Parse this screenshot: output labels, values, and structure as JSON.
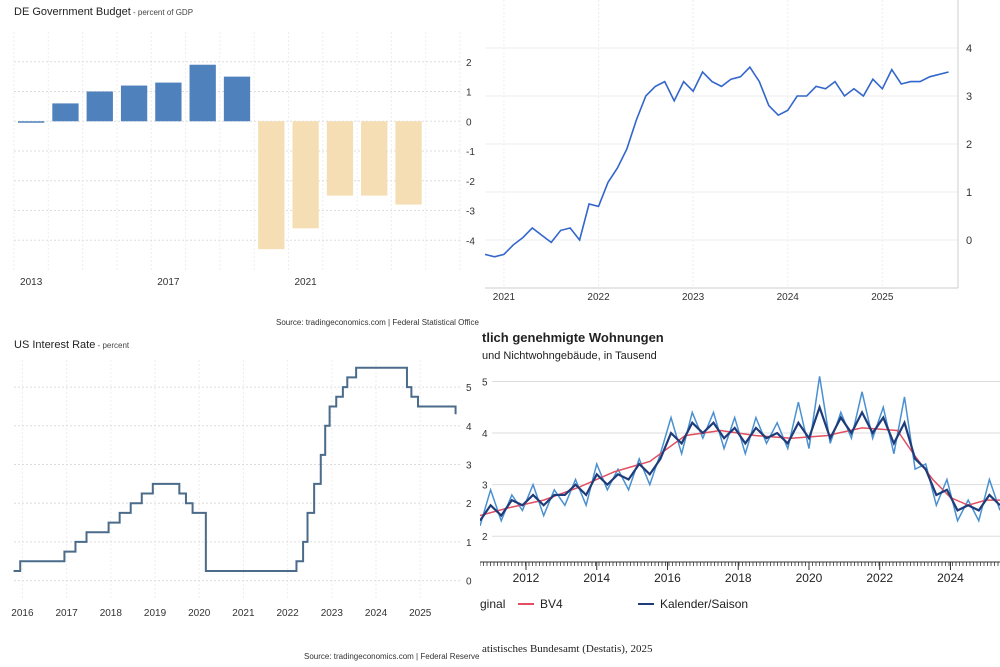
{
  "chart_data": [
    {
      "type": "bar",
      "title": "DE Government Budget",
      "subtitle": "percent of GDP",
      "source": "Source: tradingeconomics.com | Federal Statistical Office",
      "categories": [
        "2013",
        "2014",
        "2015",
        "2016",
        "2017",
        "2018",
        "2019",
        "2020",
        "2021",
        "2022",
        "2023",
        "2024",
        "2025"
      ],
      "values": [
        0.0,
        0.6,
        1.0,
        1.2,
        1.3,
        1.9,
        1.5,
        -4.3,
        -3.6,
        -2.5,
        -2.5,
        -2.8,
        null
      ],
      "x_tick_labels": [
        "2013",
        "2017",
        "2021"
      ],
      "y_ticks": [
        2,
        1,
        0,
        -1,
        -2,
        -3,
        -4
      ],
      "ylim": [
        -5,
        3
      ],
      "colors": {
        "positive": "#4f81bd",
        "negative": "#f5deb3"
      },
      "grid": true
    },
    {
      "type": "line",
      "title": "",
      "x_tick_labels": [
        "2021",
        "2022",
        "2023",
        "2024",
        "2025"
      ],
      "y_ticks": [
        4,
        3,
        2,
        1,
        0
      ],
      "ylim": [
        -1,
        5
      ],
      "series": [
        {
          "x": [
            2020.8,
            2020.9,
            2021.0,
            2021.1,
            2021.2,
            2021.3,
            2021.4,
            2021.5,
            2021.6,
            2021.7,
            2021.8,
            2021.9,
            2022.0,
            2022.1,
            2022.2,
            2022.3,
            2022.4,
            2022.5,
            2022.6,
            2022.7,
            2022.8,
            2022.9,
            2023.0,
            2023.1,
            2023.2,
            2023.3,
            2023.4,
            2023.5,
            2023.6,
            2023.7,
            2023.8,
            2023.9,
            2024.0,
            2024.1,
            2024.2,
            2024.3,
            2024.4,
            2024.5,
            2024.6,
            2024.7,
            2024.8,
            2024.9,
            2025.0,
            2025.1,
            2025.2,
            2025.3,
            2025.4,
            2025.5,
            2025.7
          ],
          "values": [
            -0.3,
            -0.35,
            -0.3,
            -0.1,
            0.05,
            0.25,
            0.1,
            -0.05,
            0.2,
            0.25,
            0.0,
            0.75,
            0.7,
            1.2,
            1.5,
            1.9,
            2.5,
            3.0,
            3.2,
            3.3,
            2.9,
            3.3,
            3.1,
            3.5,
            3.3,
            3.2,
            3.35,
            3.4,
            3.6,
            3.3,
            2.8,
            2.6,
            2.7,
            3.0,
            3.0,
            3.2,
            3.15,
            3.3,
            3.0,
            3.15,
            3.0,
            3.35,
            3.15,
            3.55,
            3.25,
            3.3,
            3.3,
            3.4,
            3.5
          ]
        }
      ],
      "colors": {
        "line": "#3366cc"
      },
      "grid": true
    },
    {
      "type": "line",
      "title": "US Interest Rate",
      "subtitle": "percent",
      "source": "Source: tradingeconomics.com | Federal Reserve",
      "x_tick_labels": [
        "2016",
        "2017",
        "2018",
        "2019",
        "2020",
        "2021",
        "2022",
        "2023",
        "2024",
        "2025"
      ],
      "y_ticks": [
        5,
        4,
        3,
        2,
        1,
        0
      ],
      "ylim": [
        -0.5,
        5.7
      ],
      "series": [
        {
          "x": [
            2015.8,
            2015.95,
            2016.95,
            2017.2,
            2017.45,
            2017.95,
            2018.2,
            2018.45,
            2018.7,
            2018.95,
            2019.55,
            2019.7,
            2019.85,
            2020.15,
            2020.2,
            2022.2,
            2022.35,
            2022.45,
            2022.6,
            2022.75,
            2022.85,
            2022.95,
            2023.1,
            2023.25,
            2023.35,
            2023.55,
            2024.7,
            2024.8,
            2024.95,
            2025.7,
            2025.8
          ],
          "values": [
            0.25,
            0.5,
            0.75,
            1.0,
            1.25,
            1.5,
            1.75,
            2.0,
            2.25,
            2.5,
            2.25,
            2.0,
            1.75,
            0.25,
            0.25,
            0.5,
            1.0,
            1.75,
            2.5,
            3.25,
            4.0,
            4.5,
            4.75,
            5.0,
            5.25,
            5.5,
            5.0,
            4.75,
            4.5,
            4.5,
            4.3
          ]
        }
      ],
      "colors": {
        "line": "#4a6b8a"
      },
      "grid": true
    },
    {
      "type": "line",
      "title": "tlich genehmigte Wohnungen",
      "subtitle": "und Nichtwohngebäude, in Tausend",
      "source": "atistisches Bundesamt (Destatis), 2025",
      "x_tick_labels": [
        "2012",
        "2014",
        "2016",
        "2018",
        "2020",
        "2022",
        "2024"
      ],
      "y_ticks": [
        5,
        4,
        3,
        2
      ],
      "ylim": [
        1.5,
        5.3
      ],
      "legend": [
        {
          "name": "ginal",
          "color": "#4a90d0"
        },
        {
          "name": "BV4",
          "color": "#e05060"
        },
        {
          "name": "Kalender/Saison",
          "color": "#1f3c7a"
        }
      ],
      "legend_position": "bottom",
      "series": [
        {
          "name": "ginal",
          "x": [
            2010.7,
            2011.0,
            2011.3,
            2011.6,
            2011.9,
            2012.2,
            2012.5,
            2012.8,
            2013.1,
            2013.4,
            2013.7,
            2014.0,
            2014.3,
            2014.6,
            2014.9,
            2015.2,
            2015.5,
            2015.8,
            2016.1,
            2016.4,
            2016.7,
            2017.0,
            2017.3,
            2017.6,
            2017.9,
            2018.2,
            2018.5,
            2018.8,
            2019.1,
            2019.4,
            2019.7,
            2020.0,
            2020.3,
            2020.6,
            2020.9,
            2021.2,
            2021.5,
            2021.8,
            2022.1,
            2022.4,
            2022.7,
            2023.0,
            2023.3,
            2023.6,
            2023.9,
            2024.2,
            2024.5,
            2024.8,
            2025.1,
            2025.4
          ],
          "values": [
            2.2,
            2.9,
            2.3,
            2.8,
            2.5,
            3.0,
            2.4,
            2.9,
            2.6,
            3.1,
            2.6,
            3.4,
            2.9,
            3.3,
            2.9,
            3.5,
            3.0,
            3.6,
            4.3,
            3.6,
            4.4,
            3.9,
            4.4,
            3.7,
            4.3,
            3.6,
            4.3,
            3.8,
            4.2,
            3.7,
            4.6,
            3.7,
            5.1,
            3.8,
            4.4,
            3.9,
            4.8,
            3.9,
            4.5,
            3.6,
            4.7,
            3.3,
            3.4,
            2.6,
            3.1,
            2.3,
            2.7,
            2.3,
            3.1,
            2.5
          ]
        },
        {
          "name": "BV4",
          "x": [
            2010.7,
            2011.5,
            2012.5,
            2013.5,
            2014.5,
            2015.5,
            2016.5,
            2017.5,
            2018.5,
            2019.5,
            2020.5,
            2021.5,
            2022.5,
            2023.0,
            2023.5,
            2024.0,
            2024.5,
            2025.0,
            2025.4
          ],
          "values": [
            2.4,
            2.55,
            2.7,
            2.95,
            3.25,
            3.45,
            3.95,
            4.05,
            3.95,
            3.9,
            3.95,
            4.1,
            4.05,
            3.55,
            3.1,
            2.75,
            2.6,
            2.7,
            2.7
          ]
        },
        {
          "name": "Kalender/Saison",
          "x": [
            2010.7,
            2011.0,
            2011.3,
            2011.6,
            2011.9,
            2012.2,
            2012.5,
            2012.8,
            2013.1,
            2013.4,
            2013.7,
            2014.0,
            2014.3,
            2014.6,
            2014.9,
            2015.2,
            2015.5,
            2015.8,
            2016.1,
            2016.4,
            2016.7,
            2017.0,
            2017.3,
            2017.6,
            2017.9,
            2018.2,
            2018.5,
            2018.8,
            2019.1,
            2019.4,
            2019.7,
            2020.0,
            2020.3,
            2020.6,
            2020.9,
            2021.2,
            2021.5,
            2021.8,
            2022.1,
            2022.4,
            2022.7,
            2023.0,
            2023.3,
            2023.6,
            2023.9,
            2024.2,
            2024.5,
            2024.8,
            2025.1,
            2025.4
          ],
          "values": [
            2.3,
            2.6,
            2.4,
            2.7,
            2.6,
            2.8,
            2.6,
            2.8,
            2.8,
            3.0,
            2.8,
            3.2,
            3.0,
            3.2,
            3.1,
            3.4,
            3.2,
            3.5,
            4.0,
            3.8,
            4.2,
            4.0,
            4.2,
            3.9,
            4.1,
            3.8,
            4.1,
            3.9,
            4.0,
            3.8,
            4.2,
            3.9,
            4.5,
            3.9,
            4.3,
            4.0,
            4.4,
            4.0,
            4.3,
            3.8,
            4.2,
            3.5,
            3.3,
            2.8,
            2.9,
            2.5,
            2.6,
            2.5,
            2.8,
            2.6
          ]
        }
      ],
      "grid": true
    }
  ]
}
